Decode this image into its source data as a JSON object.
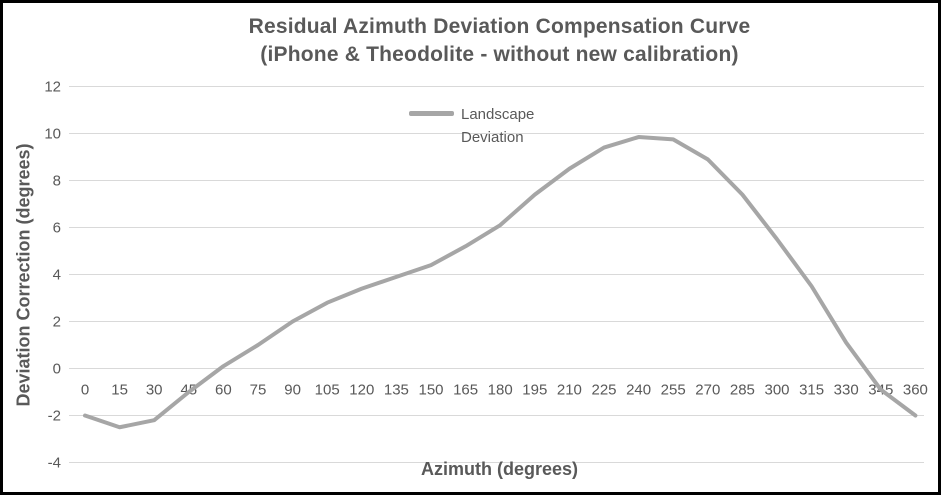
{
  "window": {
    "background": "#ffffff",
    "frame_border_color": "#000000"
  },
  "chart_data": {
    "type": "line",
    "title": "Residual Azimuth Deviation Compensation Curve",
    "subtitle": "(iPhone & Theodolite - without new calibration)",
    "xlabel": "Azimuth (degrees)",
    "ylabel": "Deviation Correction (degrees)",
    "categories": [
      0,
      15,
      30,
      45,
      60,
      75,
      90,
      105,
      120,
      135,
      150,
      165,
      180,
      195,
      210,
      225,
      240,
      255,
      270,
      285,
      300,
      315,
      330,
      345,
      360
    ],
    "series": [
      {
        "name": "Landscape Deviation",
        "values": [
          -2.0,
          -2.5,
          -2.2,
          -1.0,
          0.1,
          1.0,
          2.0,
          2.8,
          3.4,
          3.9,
          4.4,
          5.2,
          6.1,
          7.4,
          8.5,
          9.4,
          9.85,
          9.75,
          8.9,
          7.4,
          5.5,
          3.5,
          1.1,
          -0.9,
          -2.0
        ]
      }
    ],
    "ylim": [
      -4,
      12
    ],
    "y_ticks": [
      12,
      10,
      8,
      6,
      4,
      2,
      0,
      -2,
      -4
    ],
    "grid": "horizontal",
    "legend_position": "top-center",
    "marker": "none",
    "colors": {
      "line": "#a6a6a6",
      "gridline": "#d9d9d9",
      "tick_text": "#595959",
      "title_text": "#595959"
    }
  }
}
